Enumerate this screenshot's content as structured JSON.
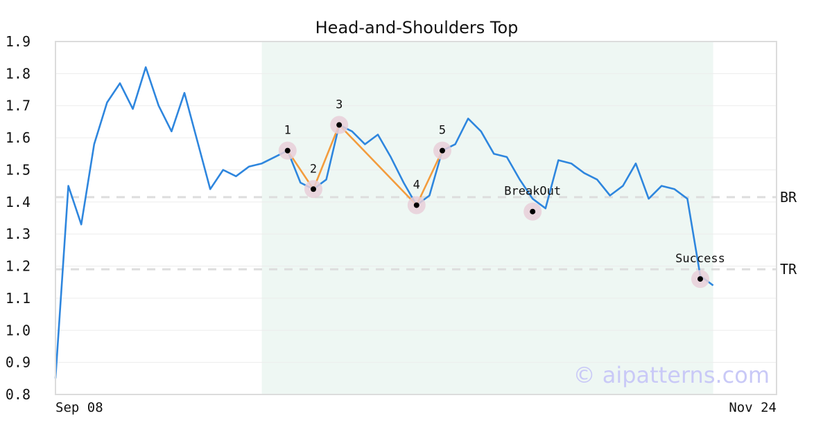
{
  "chart_data": {
    "type": "line",
    "title": "Head-and-Shoulders Top",
    "xlabel": "",
    "ylabel": "",
    "ylim": [
      0.8,
      1.9
    ],
    "y_ticks": [
      "0.8",
      "0.9",
      "1.0",
      "1.1",
      "1.2",
      "1.3",
      "1.4",
      "1.5",
      "1.6",
      "1.7",
      "1.8",
      "1.9"
    ],
    "x_tick_labels": [
      "Sep 08",
      "Nov 24"
    ],
    "grid": true,
    "colors": {
      "line": "#2e86de",
      "pattern": "#f39c3d",
      "highlight": "#eef7f3",
      "marker_halo": "#e8cfd8",
      "levels": "#dddddd"
    },
    "series": [
      {
        "values": [
          0.85,
          1.45,
          1.33,
          1.58,
          1.71,
          1.77,
          1.69,
          1.82,
          1.7,
          1.62,
          1.74,
          1.59,
          1.44,
          1.5,
          1.48,
          1.51,
          1.52,
          1.54,
          1.56,
          1.46,
          1.44,
          1.47,
          1.64,
          1.62,
          1.58,
          1.61,
          1.54,
          1.46,
          1.39,
          1.42,
          1.56,
          1.58,
          1.66,
          1.62,
          1.55,
          1.54,
          1.47,
          1.41,
          1.38,
          1.53,
          1.52,
          1.49,
          1.47,
          1.42,
          1.45,
          1.52,
          1.41,
          1.45,
          1.44,
          1.41,
          1.17,
          1.14
        ]
      }
    ],
    "highlight_range": [
      16,
      51
    ],
    "pattern_points": [
      {
        "label": "1",
        "index": 18,
        "value": 1.56
      },
      {
        "label": "2",
        "index": 20,
        "value": 1.44
      },
      {
        "label": "3",
        "index": 22,
        "value": 1.64
      },
      {
        "label": "4",
        "index": 28,
        "value": 1.39
      },
      {
        "label": "5",
        "index": 30,
        "value": 1.56
      }
    ],
    "events": [
      {
        "label": "BreakOut",
        "index": 37,
        "value": 1.37
      },
      {
        "label": "Success",
        "index": 50,
        "value": 1.16
      }
    ],
    "levels": [
      {
        "label": "BR",
        "value": 1.415
      },
      {
        "label": "TR",
        "value": 1.19
      }
    ],
    "watermark": "© aipatterns.com"
  }
}
